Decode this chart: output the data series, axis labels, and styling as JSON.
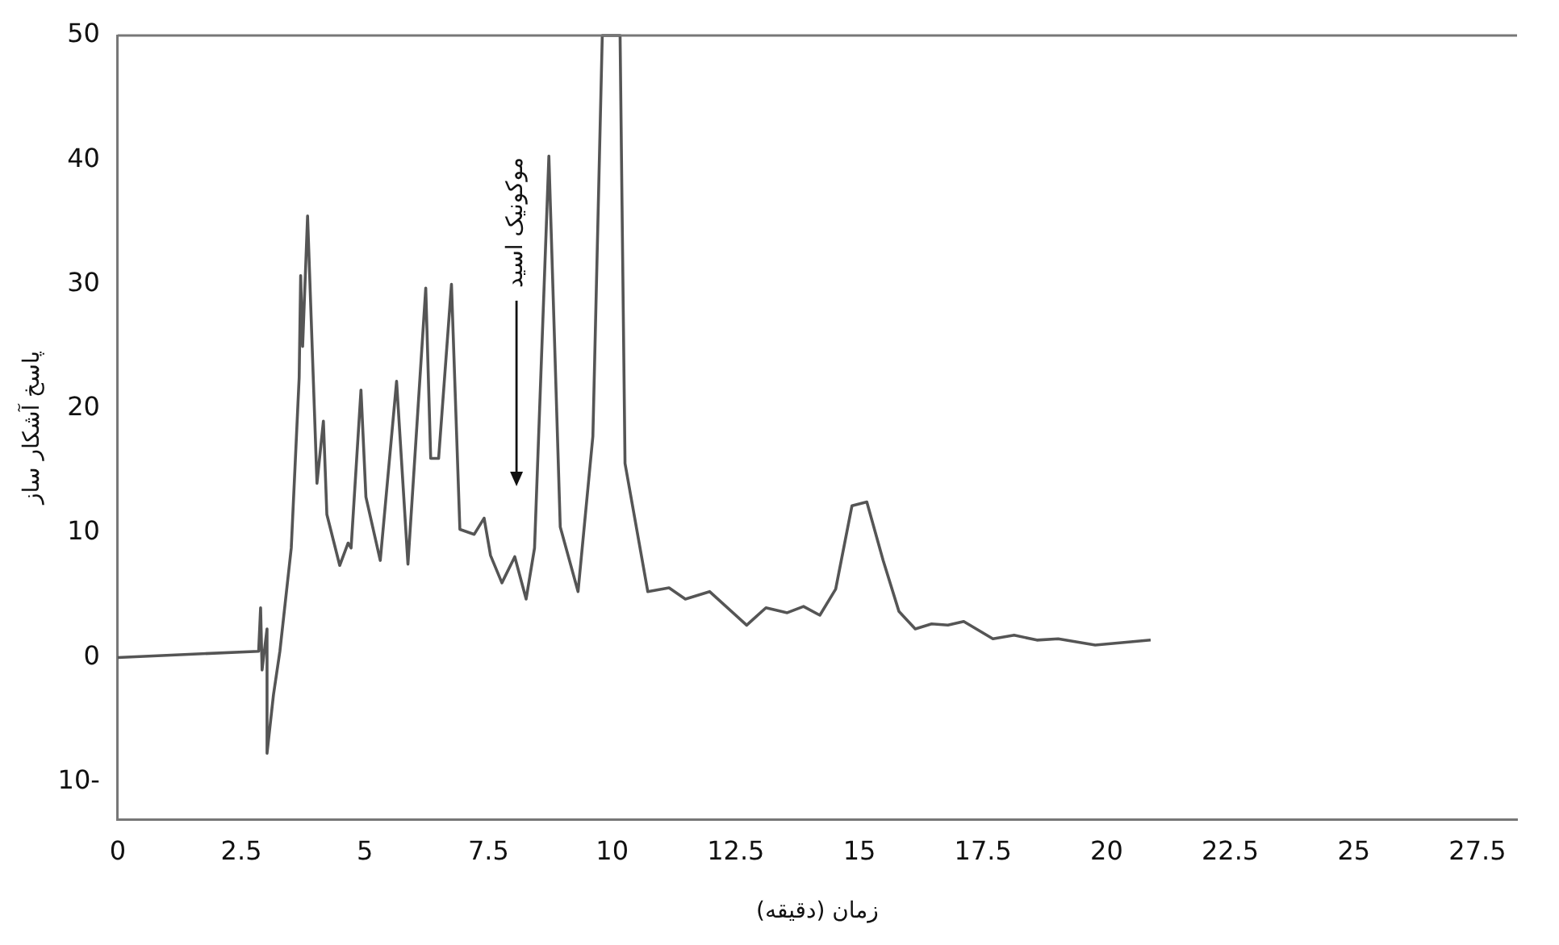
{
  "chart_data": {
    "type": "line",
    "xlabel": "زمان (دقیقه)",
    "ylabel": "پاسخ آشکار ساز",
    "x": [
      0,
      2.85,
      2.89,
      2.92,
      3.02,
      3.02,
      3.15,
      3.28,
      3.51,
      3.67,
      3.7,
      3.74,
      3.84,
      4.03,
      4.16,
      4.23,
      4.49,
      4.66,
      4.72,
      4.92,
      5.02,
      5.31,
      5.64,
      5.87,
      6.23,
      6.33,
      6.49,
      6.75,
      6.92,
      7.21,
      7.41,
      7.54,
      7.77,
      8.03,
      8.26,
      8.43,
      8.72,
      8.95,
      9.31,
      9.61,
      9.8,
      10.16,
      10.26,
      10.72,
      11.15,
      11.48,
      11.97,
      12.72,
      13.11,
      13.54,
      13.87,
      14.2,
      14.52,
      14.85,
      15.15,
      15.48,
      15.8,
      16.13,
      16.46,
      16.79,
      17.11,
      17.7,
      18.13,
      18.59,
      19.02,
      19.77,
      20.89
    ],
    "series": [
      {
        "color": "#555555",
        "values": [
          0,
          0.5,
          4,
          -1,
          2.3,
          -7.7,
          -3,
          0.5,
          8.8,
          22.5,
          30.7,
          25,
          35.5,
          14,
          19,
          11.5,
          7.4,
          9.2,
          8.8,
          21.5,
          12.9,
          7.8,
          22.2,
          7.5,
          29.7,
          16,
          16,
          30,
          10.3,
          9.9,
          11.2,
          8.2,
          6,
          8.1,
          4.7,
          8.8,
          40.3,
          10.5,
          5.3,
          17.8,
          50,
          50,
          15.6,
          5.3,
          5.6,
          4.7,
          5.3,
          2.6,
          4,
          3.6,
          4.1,
          3.4,
          5.5,
          12.2,
          12.5,
          7.8,
          3.7,
          2.3,
          2.7,
          2.6,
          2.9,
          1.5,
          1.8,
          1.4,
          1.5,
          1,
          1.4
        ]
      }
    ],
    "xlim": [
      0,
      28.3
    ],
    "xticks": [
      0,
      2.5,
      5,
      7.5,
      10,
      12.5,
      15,
      17.5,
      20,
      22.5,
      25,
      27.5
    ],
    "ylim": [
      -13,
      50
    ],
    "yticks": [
      {
        "value": -10,
        "label": "10-"
      },
      0,
      10,
      20,
      30,
      40,
      50
    ],
    "grid": false,
    "legend": false,
    "marker": "none",
    "line_style": "solid",
    "annotations": [
      "موکونیک اسید"
    ]
  }
}
